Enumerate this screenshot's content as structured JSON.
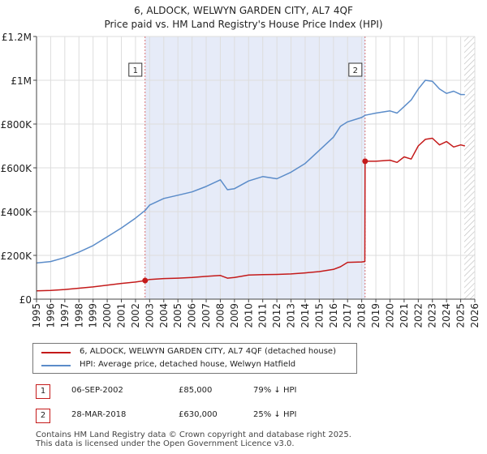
{
  "chart_data": {
    "type": "line",
    "title": "6, ALDOCK, WELWYN GARDEN CITY, AL7 4QF",
    "subtitle": "Price paid vs. HM Land Registry's House Price Index (HPI)",
    "xlim": [
      1995,
      2026
    ],
    "ylim": [
      0,
      1200000
    ],
    "x_ticks": [
      "1995",
      "1996",
      "1997",
      "1998",
      "1999",
      "2000",
      "2001",
      "2002",
      "2003",
      "2004",
      "2005",
      "2006",
      "2007",
      "2008",
      "2009",
      "2010",
      "2011",
      "2012",
      "2013",
      "2014",
      "2015",
      "2016",
      "2017",
      "2018",
      "2019",
      "2020",
      "2021",
      "2022",
      "2023",
      "2024",
      "2025",
      "2026"
    ],
    "y_ticks": [
      {
        "value": 0,
        "label": "£0"
      },
      {
        "value": 200000,
        "label": "£200K"
      },
      {
        "value": 400000,
        "label": "£400K"
      },
      {
        "value": 600000,
        "label": "£600K"
      },
      {
        "value": 800000,
        "label": "£800K"
      },
      {
        "value": 1000000,
        "label": "£1M"
      },
      {
        "value": 1200000,
        "label": "£1.2M"
      }
    ],
    "shaded_range": [
      2002.68,
      2018.24
    ],
    "hatch_from": 2025.25,
    "series": [
      {
        "name": "6, ALDOCK, WELWYN GARDEN CITY, AL7 4QF (detached house)",
        "color": "#c41a1a",
        "x": [
          1995,
          1996,
          1997,
          1998,
          1999,
          2000,
          2001,
          2002,
          2002.68,
          2003,
          2004,
          2005,
          2006,
          2007,
          2008,
          2008.5,
          2009,
          2010,
          2011,
          2012,
          2013,
          2014,
          2015,
          2016,
          2016.5,
          2017,
          2018,
          2018.22,
          2018.24,
          2019,
          2020,
          2020.5,
          2021,
          2021.5,
          2022,
          2022.5,
          2023,
          2023.5,
          2024,
          2024.5,
          2025,
          2025.3
        ],
        "values": [
          38000,
          40000,
          44000,
          50000,
          56000,
          64000,
          72000,
          78000,
          85000,
          90000,
          94000,
          96000,
          99000,
          104000,
          108000,
          96000,
          99000,
          110000,
          112000,
          113000,
          115000,
          120000,
          126000,
          136000,
          148000,
          168000,
          170000,
          172000,
          630000,
          630000,
          635000,
          625000,
          650000,
          640000,
          700000,
          730000,
          735000,
          705000,
          720000,
          695000,
          705000,
          700000
        ]
      },
      {
        "name": "HPI: Average price, detached house, Welwyn Hatfield",
        "color": "#5b8cc9",
        "x": [
          1995,
          1996,
          1997,
          1998,
          1999,
          2000,
          2001,
          2002,
          2002.68,
          2003,
          2004,
          2005,
          2006,
          2007,
          2008,
          2008.5,
          2009,
          2010,
          2011,
          2012,
          2013,
          2014,
          2015,
          2016,
          2016.5,
          2017,
          2018,
          2018.24,
          2019,
          2020,
          2020.5,
          2021,
          2021.5,
          2022,
          2022.5,
          2023,
          2023.5,
          2024,
          2024.5,
          2025,
          2025.3
        ],
        "values": [
          165000,
          172000,
          190000,
          215000,
          245000,
          285000,
          325000,
          370000,
          405000,
          430000,
          460000,
          475000,
          490000,
          515000,
          545000,
          500000,
          505000,
          540000,
          560000,
          550000,
          580000,
          620000,
          680000,
          740000,
          790000,
          810000,
          830000,
          840000,
          850000,
          860000,
          850000,
          880000,
          910000,
          960000,
          1000000,
          995000,
          960000,
          940000,
          950000,
          935000,
          935000
        ]
      }
    ],
    "annotations": [
      {
        "label": "1",
        "x": 2002.68,
        "value": 85000
      },
      {
        "label": "2",
        "x": 2018.24,
        "value": 630000
      }
    ]
  },
  "legend": {
    "items": [
      {
        "label": "6, ALDOCK, WELWYN GARDEN CITY, AL7 4QF (detached house)",
        "color": "#c41a1a"
      },
      {
        "label": "HPI: Average price, detached house, Welwyn Hatfield",
        "color": "#5b8cc9"
      }
    ]
  },
  "transactions": [
    {
      "num": "1",
      "date": "06-SEP-2002",
      "price": "£85,000",
      "hpi": "79% ↓ HPI"
    },
    {
      "num": "2",
      "date": "28-MAR-2018",
      "price": "£630,000",
      "hpi": "25% ↓ HPI"
    }
  ],
  "footer": {
    "line1": "Contains HM Land Registry data © Crown copyright and database right 2025.",
    "line2": "This data is licensed under the Open Government Licence v3.0."
  }
}
